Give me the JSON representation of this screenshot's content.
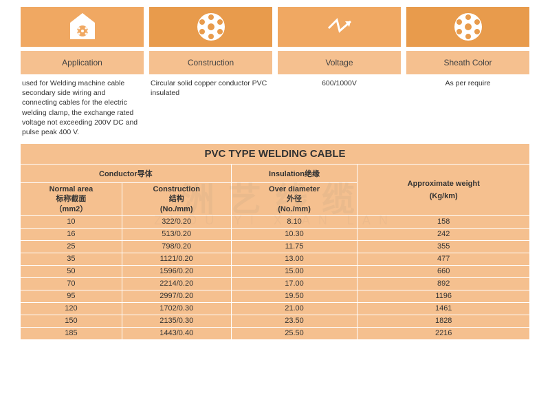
{
  "colors": {
    "icon_bg_1": "#f0a862",
    "icon_bg_2": "#e89b4c",
    "panel_bg": "#f5c08f",
    "text": "#333333",
    "white": "#ffffff"
  },
  "headers": {
    "application": "Application",
    "construction": "Construction",
    "voltage": "Voltage",
    "sheath": "Sheath Color"
  },
  "descriptions": {
    "application": "used for Welding machine cable secondary side wiring and connecting cables for the electric welding clamp, the exchange rated voltage not exceeding 200V  DC and pulse peak 400 V.",
    "construction": "Circular solid copper conductor PVC insulated",
    "voltage": "600/1000V",
    "sheath": "As per require"
  },
  "table": {
    "title": "PVC TYPE WELDING CABLE",
    "group_conductor": "Conductor导体",
    "group_insulation": "Insulation绝缘",
    "col_area_1": "Normal area",
    "col_area_2": "标称截面",
    "col_area_3": "（mm2）",
    "col_cons_1": "Construction",
    "col_cons_2": "结构",
    "col_cons_3": "(No./mm)",
    "col_dia_1": "Over diameter",
    "col_dia_2": "外径",
    "col_dia_3": "(No./mm)",
    "col_weight_1": "Approximate weight",
    "col_weight_2": "(Kg/km)",
    "rows": [
      {
        "area": "10",
        "cons": "322/0.20",
        "dia": "8.10",
        "wt": "158"
      },
      {
        "area": "16",
        "cons": "513/0.20",
        "dia": "10.30",
        "wt": "242"
      },
      {
        "area": "25",
        "cons": "798/0.20",
        "dia": "11.75",
        "wt": "355"
      },
      {
        "area": "35",
        "cons": "1121/0.20",
        "dia": "13.00",
        "wt": "477"
      },
      {
        "area": "50",
        "cons": "1596/0.20",
        "dia": "15.00",
        "wt": "660"
      },
      {
        "area": "70",
        "cons": "2214/0.20",
        "dia": "17.00",
        "wt": "892"
      },
      {
        "area": "95",
        "cons": "2997/0.20",
        "dia": "19.50",
        "wt": "1196"
      },
      {
        "area": "120",
        "cons": "1702/0.30",
        "dia": "21.00",
        "wt": "1461"
      },
      {
        "area": "150",
        "cons": "2135/0.30",
        "dia": "23.50",
        "wt": "1828"
      },
      {
        "area": "185",
        "cons": "1443/0.40",
        "dia": "25.50",
        "wt": "2216"
      }
    ]
  },
  "watermark_main": "洲艺线缆",
  "watermark_sub": "ZHOU YI XIAN LAN"
}
